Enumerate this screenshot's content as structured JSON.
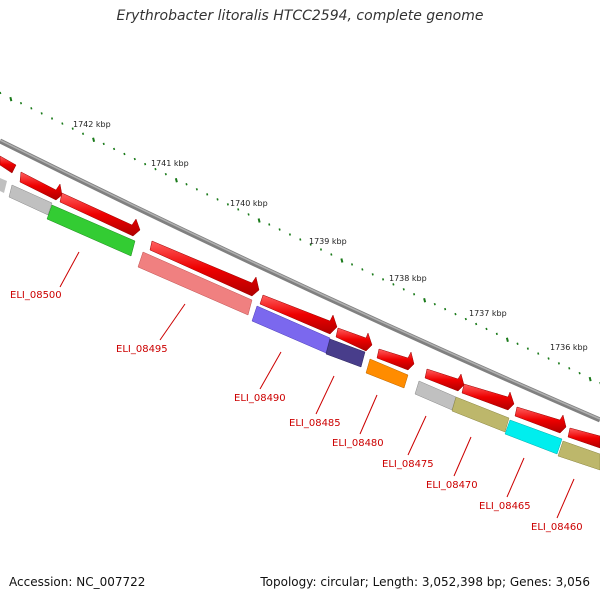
{
  "title": "Erythrobacter litoralis HTCC2594, complete genome",
  "footer": {
    "accession": "Accession: NC_007722",
    "topology": "Topology: circular; Length: 3,052,398 bp; Genes: 3,056"
  },
  "ruler": [
    {
      "label": "1742 kbp"
    },
    {
      "label": "1741 kbp"
    },
    {
      "label": "1740 kbp"
    },
    {
      "label": "1739 kbp"
    },
    {
      "label": "1738 kbp"
    },
    {
      "label": "1737 kbp"
    },
    {
      "label": "1736 kbp"
    }
  ],
  "gene_labels": [
    {
      "text": "ELI_08500"
    },
    {
      "text": "ELI_08495"
    },
    {
      "text": "ELI_08490"
    },
    {
      "text": "ELI_08485"
    },
    {
      "text": "ELI_08480"
    },
    {
      "text": "ELI_08475"
    },
    {
      "text": "ELI_08470"
    },
    {
      "text": "ELI_08465"
    },
    {
      "text": "ELI_08460"
    }
  ],
  "colors": {
    "backbone": "#808080",
    "tick": "#1a7a1a",
    "label_line": "#cc0000",
    "forward_gene": "#ee0000",
    "other_genes": [
      "#c0c0c0",
      "#33cc33",
      "#f08080",
      "#7b68ee",
      "#483d8b",
      "#ff8c00",
      "#bdb76b",
      "#00eeee"
    ]
  }
}
